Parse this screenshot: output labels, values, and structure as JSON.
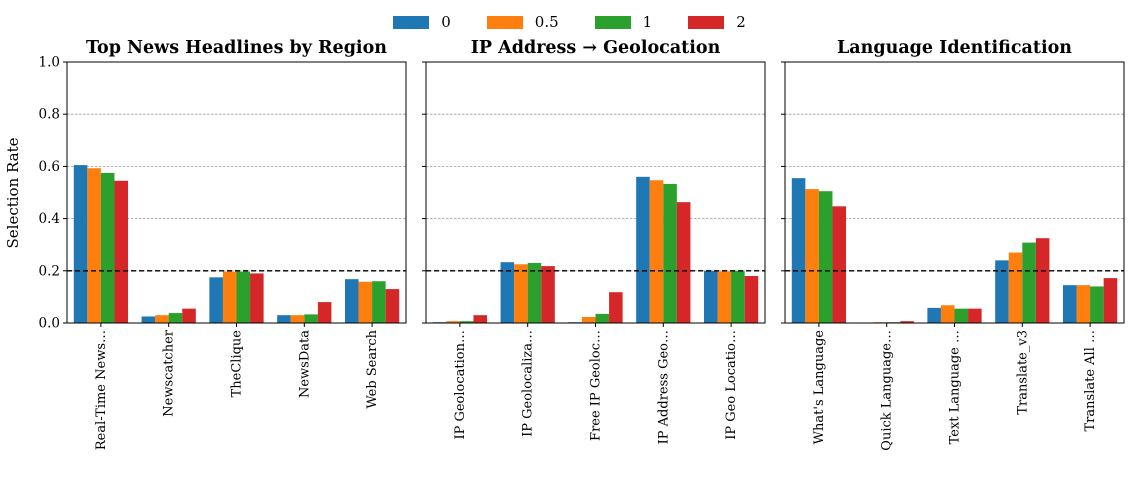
{
  "legend": {
    "items": [
      {
        "label": "0",
        "color": "#1f77b4"
      },
      {
        "label": "0.5",
        "color": "#ff7f0e"
      },
      {
        "label": "1",
        "color": "#2ca02c"
      },
      {
        "label": "2",
        "color": "#d62728"
      }
    ]
  },
  "ylabel": "Selection Rate",
  "chart_data": [
    {
      "type": "bar",
      "title": "Top News Headlines by Region",
      "categories": [
        "Real-Time News…",
        "Newscatcher",
        "TheClique",
        "NewsData",
        "Web Search"
      ],
      "ylim": [
        0,
        1.0
      ],
      "yticks": [
        "0.0",
        "0.2",
        "0.4",
        "0.6",
        "0.8",
        "1.0"
      ],
      "reference_line": 0.2,
      "series": [
        {
          "name": "0",
          "values": [
            0.605,
            0.025,
            0.175,
            0.03,
            0.168
          ]
        },
        {
          "name": "0.5",
          "values": [
            0.593,
            0.03,
            0.197,
            0.03,
            0.158
          ]
        },
        {
          "name": "1",
          "values": [
            0.575,
            0.038,
            0.197,
            0.033,
            0.16
          ]
        },
        {
          "name": "2",
          "values": [
            0.545,
            0.055,
            0.19,
            0.08,
            0.13
          ]
        }
      ]
    },
    {
      "type": "bar",
      "title": "IP Address → Geolocation",
      "categories": [
        "IP Geolocation…",
        "IP Geolocaliza…",
        "Free IP Geoloc…",
        "IP Address Geo…",
        "IP Geo Locatio…"
      ],
      "ylim": [
        0,
        1.0
      ],
      "reference_line": 0.2,
      "series": [
        {
          "name": "0",
          "values": [
            0.003,
            0.233,
            0.003,
            0.56,
            0.2
          ]
        },
        {
          "name": "0.5",
          "values": [
            0.007,
            0.225,
            0.023,
            0.547,
            0.198
          ]
        },
        {
          "name": "1",
          "values": [
            0.007,
            0.23,
            0.035,
            0.533,
            0.2
          ]
        },
        {
          "name": "2",
          "values": [
            0.03,
            0.218,
            0.118,
            0.463,
            0.18
          ]
        }
      ]
    },
    {
      "type": "bar",
      "title": "Language Identification",
      "categories": [
        "What's Language",
        "Quick Language…",
        "Text Language …",
        "Translate_v3",
        "Translate All …"
      ],
      "ylim": [
        0,
        1.0
      ],
      "reference_line": 0.2,
      "series": [
        {
          "name": "0",
          "values": [
            0.555,
            0.0,
            0.058,
            0.24,
            0.145
          ]
        },
        {
          "name": "0.5",
          "values": [
            0.513,
            0.003,
            0.068,
            0.27,
            0.145
          ]
        },
        {
          "name": "1",
          "values": [
            0.505,
            0.003,
            0.055,
            0.308,
            0.14
          ]
        },
        {
          "name": "2",
          "values": [
            0.447,
            0.007,
            0.055,
            0.325,
            0.172
          ]
        }
      ]
    }
  ]
}
